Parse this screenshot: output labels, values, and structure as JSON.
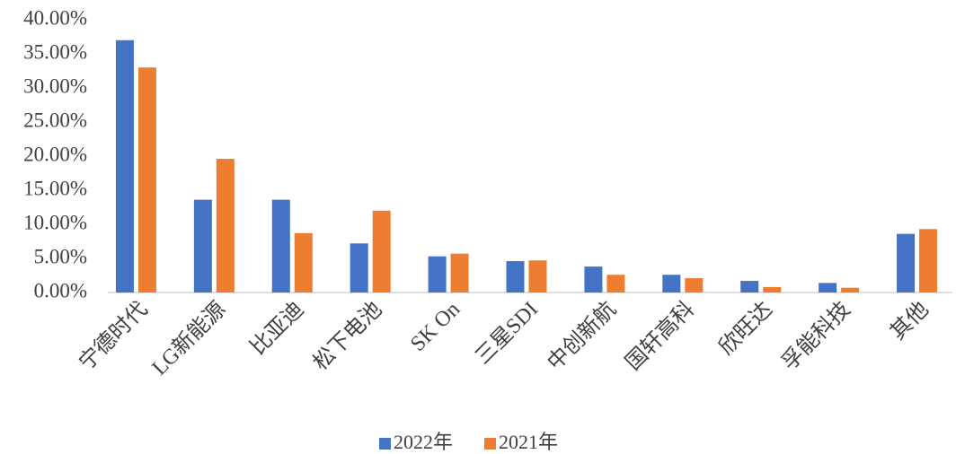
{
  "chart_data": {
    "type": "bar",
    "categories": [
      "宁德时代",
      "LG新能源",
      "比亚迪",
      "松下电池",
      "SK On",
      "三星SDI",
      "中创新航",
      "国轩高科",
      "欣旺达",
      "孚能科技",
      "其他"
    ],
    "series": [
      {
        "name": "2022年",
        "color": "#4472c4",
        "values": [
          37.0,
          13.6,
          13.6,
          7.2,
          5.3,
          4.6,
          3.8,
          2.6,
          1.7,
          1.4,
          8.6
        ]
      },
      {
        "name": "2021年",
        "color": "#ed7d31",
        "values": [
          33.0,
          19.6,
          8.7,
          12.0,
          5.7,
          4.7,
          2.6,
          2.1,
          0.8,
          0.7,
          9.3
        ]
      }
    ],
    "ylim": [
      0,
      40
    ],
    "yticks": [
      {
        "value": 0,
        "label": "0.00%"
      },
      {
        "value": 5,
        "label": "5.00%"
      },
      {
        "value": 10,
        "label": "10.00%"
      },
      {
        "value": 15,
        "label": "15.00%"
      },
      {
        "value": 20,
        "label": "20.00%"
      },
      {
        "value": 25,
        "label": "25.00%"
      },
      {
        "value": 30,
        "label": "30.00%"
      },
      {
        "value": 35,
        "label": "35.00%"
      },
      {
        "value": 40,
        "label": "40.00%"
      }
    ],
    "grid": false,
    "legend": "bottom"
  }
}
